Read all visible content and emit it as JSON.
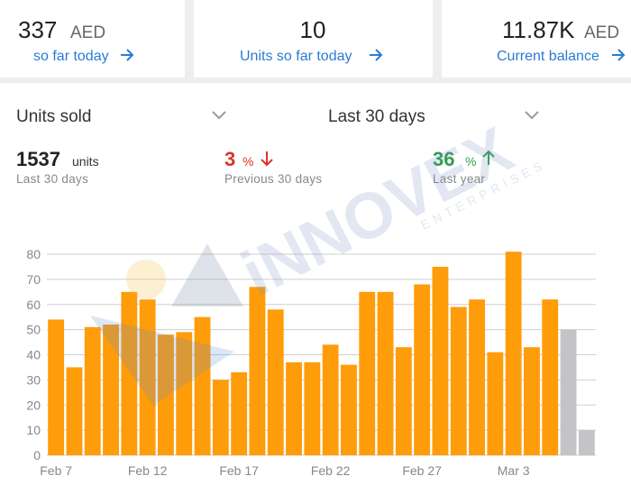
{
  "cards": [
    {
      "value": "337",
      "unit": "AED",
      "link": "so far today"
    },
    {
      "value": "10",
      "link": "Units so far today"
    },
    {
      "value": "11.87K",
      "unit": "AED",
      "link": "Current balance"
    }
  ],
  "filters": [
    "Units sold",
    "Last 30 days"
  ],
  "stats": [
    {
      "value": "1537",
      "unit": "units",
      "label": "Last 30 days"
    },
    {
      "value": "3",
      "unit": "%",
      "label": "Previous 30 days",
      "color": "#d9342b"
    },
    {
      "value": "36",
      "unit": "%",
      "label": "Last year",
      "color": "#2e9e4a"
    }
  ],
  "watermark": {
    "name": "iNNOVEX",
    "sub": "ENTERPRISES"
  },
  "chart_data": {
    "type": "bar",
    "categories": [
      "Feb 7",
      null,
      null,
      null,
      null,
      "Feb 12",
      null,
      null,
      null,
      null,
      "Feb 17",
      null,
      null,
      null,
      null,
      "Feb 22",
      null,
      null,
      null,
      null,
      "Feb 27",
      null,
      null,
      null,
      null,
      "Mar 3",
      null,
      null,
      null,
      null
    ],
    "values": [
      54,
      35,
      51,
      52,
      65,
      62,
      48,
      49,
      55,
      30,
      33,
      67,
      58,
      37,
      37,
      44,
      36,
      65,
      65,
      43,
      68,
      75,
      59,
      62,
      41,
      81,
      43,
      62,
      50,
      10
    ],
    "colors": [
      "#ff9c0a",
      "#ff9c0a",
      "#ff9c0a",
      "#ff9c0a",
      "#ff9c0a",
      "#ff9c0a",
      "#ff9c0a",
      "#ff9c0a",
      "#ff9c0a",
      "#ff9c0a",
      "#ff9c0a",
      "#ff9c0a",
      "#ff9c0a",
      "#ff9c0a",
      "#ff9c0a",
      "#ff9c0a",
      "#ff9c0a",
      "#ff9c0a",
      "#ff9c0a",
      "#ff9c0a",
      "#ff9c0a",
      "#ff9c0a",
      "#ff9c0a",
      "#ff9c0a",
      "#ff9c0a",
      "#ff9c0a",
      "#ff9c0a",
      "#ff9c0a",
      "#c4c4c6",
      "#c4c4c6"
    ],
    "ylim": [
      0,
      80
    ],
    "yticks": [
      0,
      10,
      20,
      30,
      40,
      50,
      60,
      70,
      80
    ],
    "grid": true
  }
}
